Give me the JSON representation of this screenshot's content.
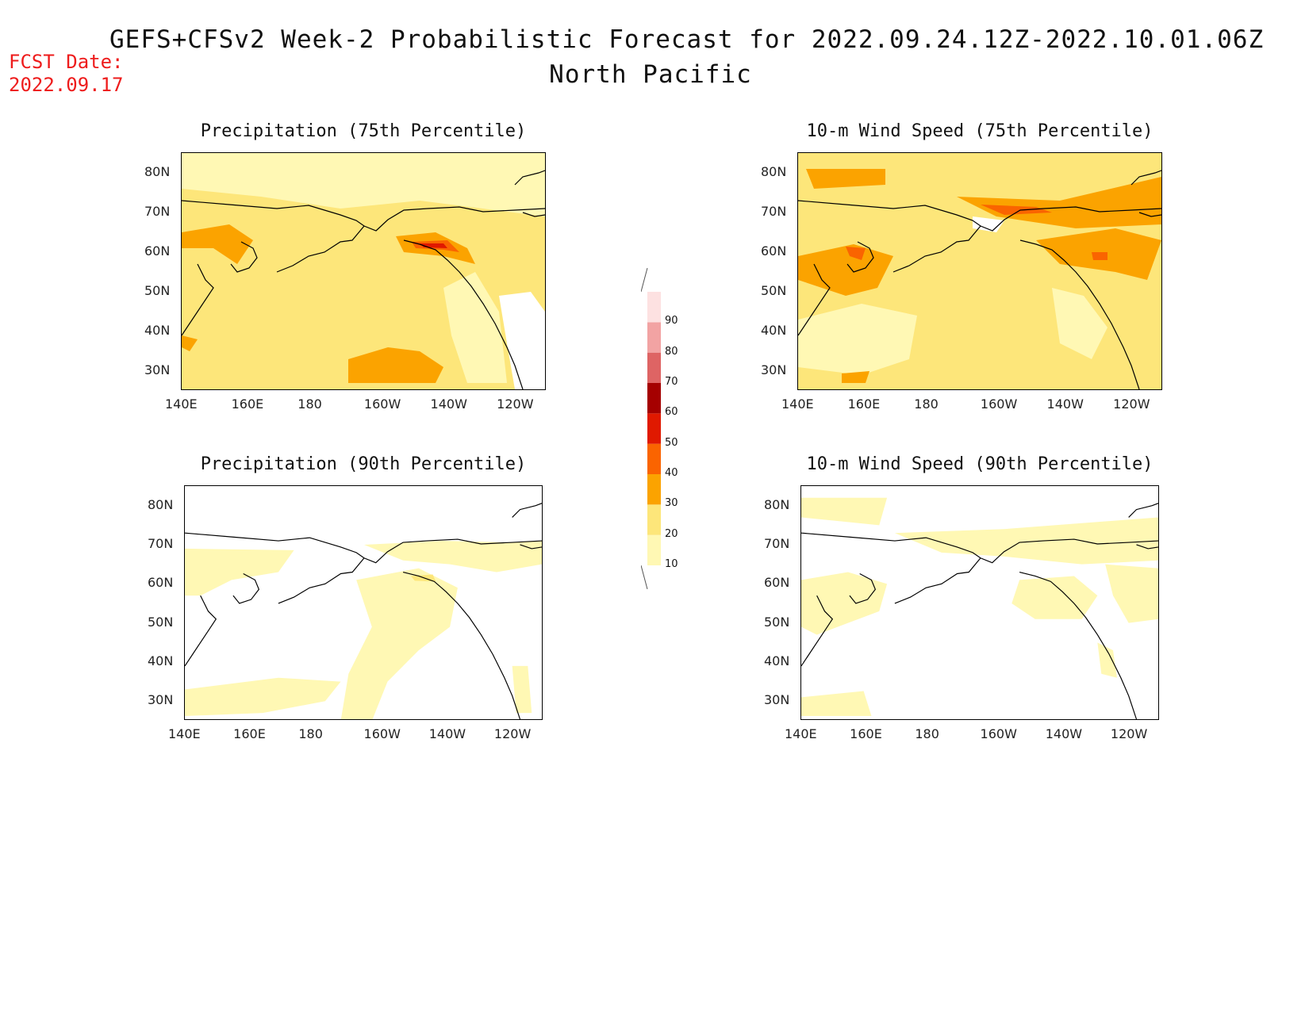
{
  "title": "GEFS+CFSv2 Week-2 Probabilistic Forecast for 2022.09.24.12Z-2022.10.01.06Z",
  "subtitle": "North Pacific",
  "fcst_date_label": "FCST Date:",
  "fcst_date_value": "2022.09.17",
  "panels": [
    {
      "title": "Precipitation (75th Percentile)"
    },
    {
      "title": "10-m Wind Speed (75th Percentile)"
    },
    {
      "title": "Precipitation (90th Percentile)"
    },
    {
      "title": "10-m Wind Speed (90th Percentile)"
    }
  ],
  "lat_ticks": [
    "80N",
    "70N",
    "60N",
    "50N",
    "40N",
    "30N"
  ],
  "lon_ticks": [
    "140E",
    "160E",
    "180",
    "160W",
    "140W",
    "120W"
  ],
  "colorbar": {
    "levels": [
      "10",
      "20",
      "30",
      "40",
      "50",
      "60",
      "70",
      "80",
      "90"
    ],
    "colors": [
      "#fff8b4",
      "#fde67a",
      "#fba300",
      "#fa6400",
      "#e01900",
      "#a50000",
      "#de6464",
      "#f2a3a3",
      "#fde1e1"
    ]
  }
}
